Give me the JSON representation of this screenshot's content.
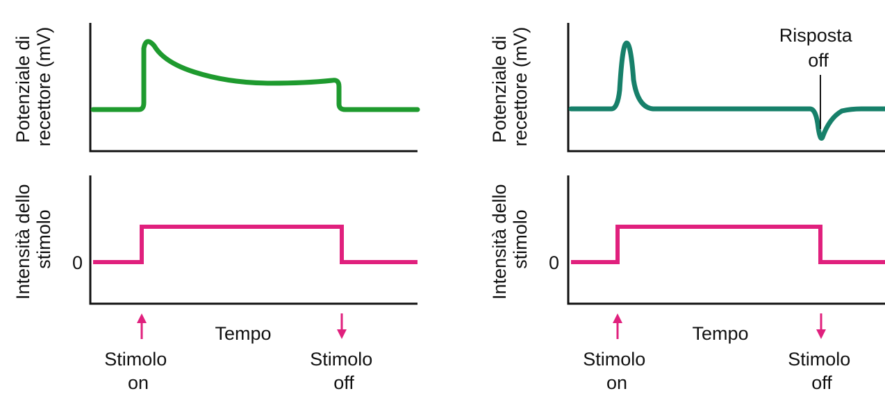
{
  "colors": {
    "axis": "#111111",
    "receptor_left": "#1e9a2e",
    "receptor_right": "#17806a",
    "stimulus": "#e0207d"
  },
  "panels": [
    {
      "receptor_ylabel": [
        "Potenziale di",
        "recettore (mV)"
      ],
      "stimulus_ylabel": [
        "Intensità dello",
        "stimolo"
      ],
      "zero_label": "0",
      "time_label": "Tempo",
      "stim_on_label": [
        "Stimolo",
        "on"
      ],
      "stim_off_label": [
        "Stimolo",
        "off"
      ],
      "response_type": "tonic (slowly adapting)"
    },
    {
      "receptor_ylabel": [
        "Potenziale di",
        "recettore (mV)"
      ],
      "stimulus_ylabel": [
        "Intensità dello",
        "stimolo"
      ],
      "zero_label": "0",
      "time_label": "Tempo",
      "stim_on_label": [
        "Stimolo",
        "on"
      ],
      "stim_off_label": [
        "Stimolo",
        "off"
      ],
      "off_response_label": [
        "Risposta",
        "off"
      ],
      "response_type": "phasic (rapidly adapting)"
    }
  ]
}
